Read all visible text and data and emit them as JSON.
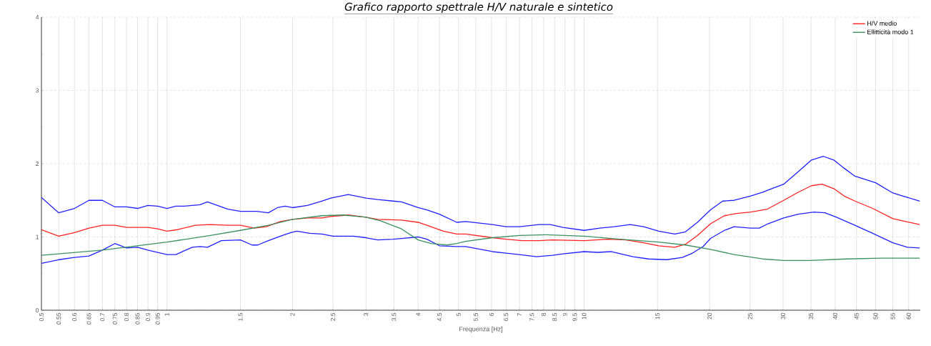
{
  "chart_data": {
    "type": "line",
    "title": "Grafico rapporto spettrale H/V naturale e sintetico",
    "xlabel": "Frequenza [Hz]",
    "log": "x",
    "grid": true,
    "legend": "top right",
    "marker": "none",
    "line_style": "solid",
    "xlim": [
      0.5,
      64
    ],
    "ylim": [
      0,
      4
    ],
    "xticks": [
      0.5,
      0.55,
      0.6,
      0.65,
      0.7,
      0.75,
      0.8,
      0.85,
      0.9,
      0.95,
      1,
      1.5,
      2,
      2.5,
      3,
      3.5,
      4,
      4.5,
      5,
      5.5,
      6,
      6.5,
      7,
      7.5,
      8,
      8.5,
      9,
      9.5,
      10,
      15,
      20,
      25,
      30,
      35,
      40,
      45,
      50,
      55,
      60
    ],
    "yticks": [
      0,
      {
        "value": 0.5,
        "label": null
      },
      1,
      {
        "value": 1.5,
        "label": null
      },
      2,
      {
        "value": 2.5,
        "label": null
      },
      3,
      {
        "value": 3.5,
        "label": null
      },
      4
    ],
    "series": [
      {
        "color": "#2020ff",
        "x": [
          0.5,
          0.55,
          0.6,
          0.65,
          0.7,
          0.75,
          0.8,
          0.85,
          0.9,
          0.95,
          1,
          1.05,
          1.1,
          1.2,
          1.25,
          1.4,
          1.5,
          1.64,
          1.75,
          1.84,
          1.92,
          2,
          2.17,
          2.35,
          2.47,
          2.72,
          3,
          3.2,
          3.48,
          3.65,
          4,
          4.2,
          4.5,
          4.95,
          5.2,
          6.03,
          6.5,
          7,
          7.8,
          8.3,
          8.9,
          10,
          10.9,
          11.8,
          12.9,
          13.9,
          15.1,
          16.5,
          17.5,
          18.7,
          20.1,
          21.5,
          22.9,
          25.1,
          26.8,
          27.9,
          30.1,
          32.6,
          35.1,
          37.5,
          39.7,
          42,
          44.6,
          50,
          55,
          58,
          63.8
        ],
        "values": [
          1.54,
          1.33,
          1.39,
          1.5,
          1.5,
          1.41,
          1.41,
          1.39,
          1.43,
          1.42,
          1.39,
          1.42,
          1.42,
          1.44,
          1.48,
          1.38,
          1.35,
          1.35,
          1.33,
          1.4,
          1.42,
          1.4,
          1.43,
          1.49,
          1.53,
          1.58,
          1.53,
          1.51,
          1.49,
          1.48,
          1.4,
          1.37,
          1.31,
          1.2,
          1.21,
          1.17,
          1.14,
          1.14,
          1.17,
          1.17,
          1.13,
          1.09,
          1.12,
          1.14,
          1.17,
          1.14,
          1.08,
          1.04,
          1.07,
          1.2,
          1.37,
          1.49,
          1.5,
          1.56,
          1.61,
          1.65,
          1.72,
          1.89,
          2.05,
          2.1,
          2.05,
          1.94,
          1.83,
          1.74,
          1.6,
          1.56,
          1.49
        ]
      },
      {
        "name": "H/V medio",
        "color": "#ff2020",
        "x": [
          0.5,
          0.55,
          0.6,
          0.65,
          0.7,
          0.75,
          0.8,
          0.9,
          0.95,
          1,
          1.06,
          1.17,
          1.27,
          1.4,
          1.5,
          1.62,
          1.73,
          1.87,
          2,
          2.17,
          2.35,
          2.47,
          2.72,
          3,
          3.2,
          3.65,
          4,
          4.2,
          4.6,
          4.95,
          5.2,
          6.03,
          6.5,
          7.1,
          7.8,
          8.4,
          10,
          11.4,
          12.6,
          13.9,
          15.1,
          16.5,
          17.5,
          18.7,
          20.1,
          21.7,
          23.2,
          25.1,
          27.5,
          30.1,
          32.6,
          35.1,
          37.2,
          39.7,
          42,
          44.6,
          49.2,
          55,
          58,
          63.8
        ],
        "values": [
          1.1,
          1.01,
          1.06,
          1.12,
          1.16,
          1.16,
          1.13,
          1.13,
          1.11,
          1.08,
          1.1,
          1.16,
          1.17,
          1.16,
          1.16,
          1.12,
          1.14,
          1.21,
          1.24,
          1.26,
          1.26,
          1.28,
          1.3,
          1.27,
          1.24,
          1.23,
          1.2,
          1.16,
          1.08,
          1.04,
          1.04,
          0.99,
          0.97,
          0.95,
          0.95,
          0.96,
          0.95,
          0.97,
          0.96,
          0.92,
          0.88,
          0.86,
          0.9,
          1.02,
          1.18,
          1.29,
          1.32,
          1.34,
          1.38,
          1.5,
          1.61,
          1.7,
          1.72,
          1.66,
          1.56,
          1.49,
          1.39,
          1.25,
          1.22,
          1.17
        ]
      },
      {
        "color": "#2020ff",
        "x": [
          0.5,
          0.55,
          0.6,
          0.65,
          0.7,
          0.75,
          0.8,
          0.85,
          0.9,
          0.95,
          1,
          1.05,
          1.15,
          1.2,
          1.25,
          1.35,
          1.5,
          1.6,
          1.65,
          1.75,
          1.87,
          1.98,
          2.05,
          2.2,
          2.35,
          2.5,
          2.8,
          3,
          3.2,
          3.48,
          3.65,
          4,
          4.2,
          4.5,
          4.95,
          5.2,
          6.03,
          6.5,
          7,
          7.7,
          8.4,
          8.9,
          10,
          10.8,
          11.6,
          13.1,
          14.3,
          15.8,
          17.2,
          18.2,
          19.3,
          20.1,
          21.7,
          22.9,
          25.1,
          26.3,
          27.6,
          30.1,
          32.6,
          35.6,
          37.8,
          40.3,
          44.6,
          49.2,
          55,
          59.6,
          63.8
        ],
        "values": [
          0.64,
          0.69,
          0.72,
          0.74,
          0.82,
          0.91,
          0.85,
          0.86,
          0.82,
          0.79,
          0.76,
          0.76,
          0.86,
          0.87,
          0.86,
          0.95,
          0.96,
          0.89,
          0.89,
          0.95,
          1.01,
          1.06,
          1.08,
          1.05,
          1.04,
          1.01,
          1.01,
          0.99,
          0.96,
          0.97,
          0.98,
          1.0,
          0.97,
          0.88,
          0.87,
          0.87,
          0.8,
          0.78,
          0.76,
          0.73,
          0.75,
          0.77,
          0.8,
          0.79,
          0.8,
          0.73,
          0.7,
          0.69,
          0.72,
          0.78,
          0.87,
          0.98,
          1.09,
          1.14,
          1.12,
          1.12,
          1.18,
          1.26,
          1.31,
          1.34,
          1.33,
          1.27,
          1.16,
          1.05,
          0.92,
          0.86,
          0.85
        ]
      },
      {
        "name": "Ellitticità modo 1",
        "color": "#3c9060",
        "x": [
          0.5,
          0.7,
          1,
          1.27,
          1.5,
          1.75,
          2,
          2.35,
          2.64,
          3,
          3.25,
          3.65,
          4,
          4.3,
          4.7,
          4.95,
          5.2,
          6.03,
          7,
          8.1,
          10,
          12.2,
          15.1,
          17.5,
          20.1,
          22.9,
          26.8,
          30.1,
          34.8,
          42.4,
          51.6,
          63.8
        ],
        "values": [
          0.75,
          0.82,
          0.93,
          1.02,
          1.09,
          1.16,
          1.24,
          1.29,
          1.3,
          1.27,
          1.22,
          1.11,
          0.96,
          0.91,
          0.89,
          0.91,
          0.94,
          0.99,
          1.02,
          1.03,
          1.01,
          0.97,
          0.93,
          0.89,
          0.83,
          0.76,
          0.7,
          0.68,
          0.68,
          0.7,
          0.71,
          0.71
        ]
      }
    ]
  }
}
